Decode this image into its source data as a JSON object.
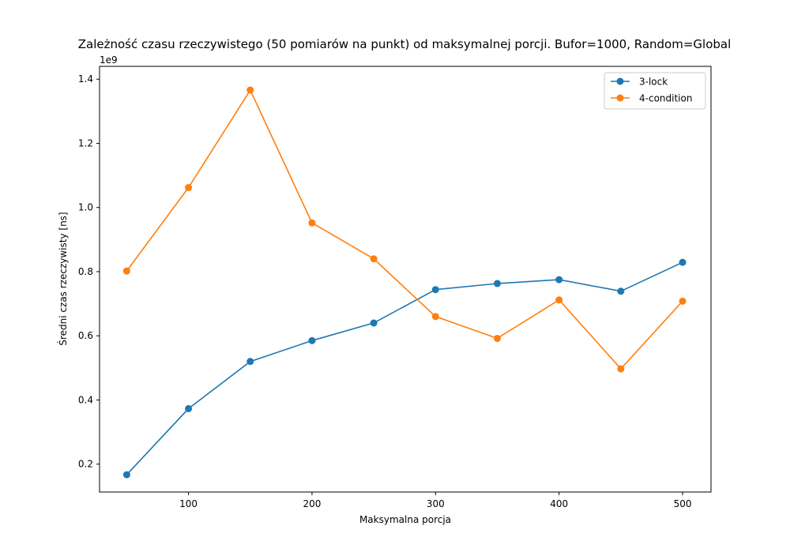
{
  "chart_data": {
    "type": "line",
    "title": "Zależność czasu rzeczywistego (50 pomiarów na punkt) od maksymalnej porcji. Bufor=1000, Random=Global",
    "xlabel": "Maksymalna porcja",
    "ylabel": "Średni czas rzeczywisty [ns]",
    "y_offset_label": "1e9",
    "x": [
      50,
      100,
      150,
      200,
      250,
      300,
      350,
      400,
      450,
      500
    ],
    "xlim": [
      28,
      523
    ],
    "ylim": [
      0.113,
      1.44
    ],
    "x_ticks": [
      100,
      200,
      300,
      400,
      500
    ],
    "y_ticks": [
      0.2,
      0.4,
      0.6,
      0.8,
      1.0,
      1.2,
      1.4
    ],
    "x_tick_labels": [
      "100",
      "200",
      "300",
      "400",
      "500"
    ],
    "y_tick_labels": [
      "0.2",
      "0.4",
      "0.6",
      "0.8",
      "1.0",
      "1.2",
      "1.4"
    ],
    "grid": false,
    "legend_position": "top-right",
    "series": [
      {
        "name": "3-lock",
        "color": "#1f77b4",
        "values": [
          0.167,
          0.373,
          0.52,
          0.585,
          0.64,
          0.744,
          0.763,
          0.775,
          0.739,
          0.829
        ]
      },
      {
        "name": "4-condition",
        "color": "#ff7f0e",
        "values": [
          0.802,
          1.062,
          1.366,
          0.952,
          0.84,
          0.66,
          0.592,
          0.712,
          0.497,
          0.708
        ]
      }
    ]
  }
}
